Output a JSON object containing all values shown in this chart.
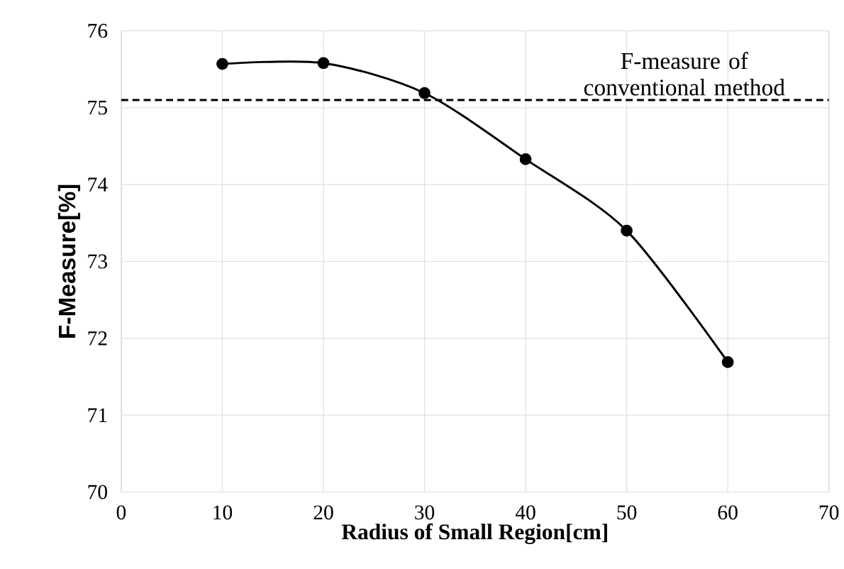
{
  "chart_data": {
    "type": "line",
    "xlabel": "Radius of Small Region[cm]",
    "ylabel": "F-Measure[%]",
    "x": [
      10,
      20,
      30,
      40,
      50,
      60
    ],
    "series": [
      {
        "color": "#000000",
        "values": [
          75.57,
          75.58,
          75.19,
          74.33,
          73.4,
          71.69
        ]
      }
    ],
    "xlim": [
      0,
      70
    ],
    "xticks": [
      0,
      10,
      20,
      30,
      40,
      50,
      60,
      70
    ],
    "ylim": [
      70,
      76
    ],
    "yticks": [
      70,
      71,
      72,
      73,
      74,
      75,
      76
    ],
    "grid": true,
    "marker": "circle",
    "line_style": "solid",
    "ref_lines": [
      {
        "axis": "y",
        "value": 75.1,
        "label": "F-measure of conventional method",
        "color": "#000000",
        "line_style": "dashed"
      }
    ]
  }
}
